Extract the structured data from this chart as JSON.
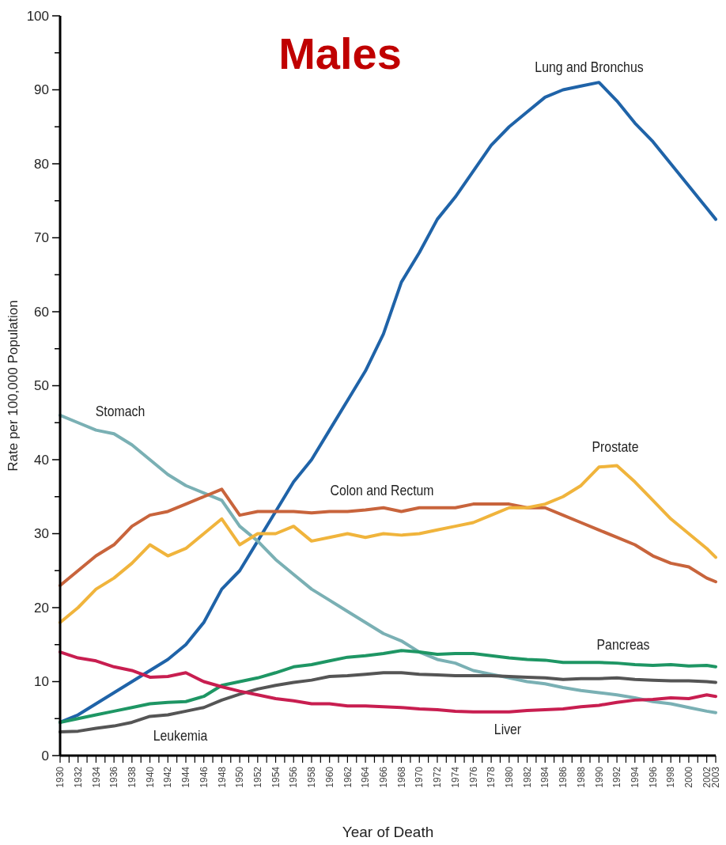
{
  "chart_data": {
    "type": "line",
    "title": "Males",
    "xlabel": "Year of Death",
    "ylabel": "Rate per 100,000 Population",
    "x": [
      1930,
      1932,
      1934,
      1936,
      1938,
      1940,
      1942,
      1944,
      1946,
      1948,
      1950,
      1952,
      1954,
      1956,
      1958,
      1960,
      1962,
      1964,
      1966,
      1968,
      1970,
      1972,
      1974,
      1976,
      1978,
      1980,
      1982,
      1984,
      1986,
      1988,
      1990,
      1992,
      1994,
      1996,
      1998,
      2000,
      2002,
      2003
    ],
    "xlim": [
      1930,
      2003
    ],
    "xticks": [
      1930,
      {
        "value": 1931,
        "label": null
      },
      1932,
      {
        "value": 1933,
        "label": null
      },
      1934,
      {
        "value": 1935,
        "label": null
      },
      1936,
      {
        "value": 1937,
        "label": null
      },
      1938,
      {
        "value": 1939,
        "label": null
      },
      1940,
      {
        "value": 1941,
        "label": null
      },
      1942,
      {
        "value": 1943,
        "label": null
      },
      1944,
      {
        "value": 1945,
        "label": null
      },
      1946,
      {
        "value": 1947,
        "label": null
      },
      1948,
      {
        "value": 1949,
        "label": null
      },
      1950,
      {
        "value": 1951,
        "label": null
      },
      1952,
      {
        "value": 1953,
        "label": null
      },
      1954,
      {
        "value": 1955,
        "label": null
      },
      1956,
      {
        "value": 1957,
        "label": null
      },
      1958,
      {
        "value": 1959,
        "label": null
      },
      1960,
      {
        "value": 1961,
        "label": null
      },
      1962,
      {
        "value": 1963,
        "label": null
      },
      1964,
      {
        "value": 1965,
        "label": null
      },
      1966,
      {
        "value": 1967,
        "label": null
      },
      1968,
      {
        "value": 1969,
        "label": null
      },
      1970,
      {
        "value": 1971,
        "label": null
      },
      1972,
      {
        "value": 1973,
        "label": null
      },
      1974,
      {
        "value": 1975,
        "label": null
      },
      1976,
      {
        "value": 1977,
        "label": null
      },
      1978,
      {
        "value": 1979,
        "label": null
      },
      1980,
      {
        "value": 1981,
        "label": null
      },
      1982,
      {
        "value": 1983,
        "label": null
      },
      1984,
      {
        "value": 1985,
        "label": null
      },
      1986,
      {
        "value": 1987,
        "label": null
      },
      1988,
      {
        "value": 1989,
        "label": null
      },
      1990,
      {
        "value": 1991,
        "label": null
      },
      1992,
      {
        "value": 1993,
        "label": null
      },
      1994,
      {
        "value": 1995,
        "label": null
      },
      1996,
      {
        "value": 1997,
        "label": null
      },
      1998,
      {
        "value": 1999,
        "label": null
      },
      2000,
      {
        "value": 2001,
        "label": null
      },
      2002,
      2003
    ],
    "ylim": [
      0,
      100
    ],
    "yticks": [
      0,
      {
        "value": 5,
        "label": null
      },
      10,
      {
        "value": 15,
        "label": null
      },
      20,
      {
        "value": 25,
        "label": null
      },
      30,
      {
        "value": 35,
        "label": null
      },
      40,
      {
        "value": 45,
        "label": null
      },
      50,
      {
        "value": 55,
        "label": null
      },
      60,
      {
        "value": 65,
        "label": null
      },
      70,
      {
        "value": 75,
        "label": null
      },
      80,
      {
        "value": 85,
        "label": null
      },
      90,
      {
        "value": 95,
        "label": null
      },
      100
    ],
    "series": [
      {
        "name": "Lung and Bronchus",
        "color": "#1f63a8",
        "values": [
          4.5,
          5.5,
          7,
          8.5,
          10,
          11.5,
          13,
          15,
          18,
          22.5,
          25,
          29,
          33,
          37,
          40,
          44,
          48,
          52,
          57,
          64,
          68,
          72.5,
          75.5,
          79,
          82.5,
          85,
          87,
          89,
          90,
          90.5,
          91,
          88.5,
          85.5,
          83,
          80,
          77,
          74,
          72.5
        ]
      },
      {
        "name": "Stomach",
        "color": "#7ab0b4",
        "values": [
          46,
          45,
          44,
          43.5,
          42,
          40,
          38,
          36.5,
          35.5,
          34.5,
          31,
          29,
          26.5,
          24.5,
          22.5,
          21,
          19.5,
          18,
          16.5,
          15.5,
          14,
          13,
          12.5,
          11.5,
          11,
          10.5,
          10,
          9.7,
          9.2,
          8.8,
          8.5,
          8.2,
          7.8,
          7.3,
          7,
          6.5,
          6,
          5.8
        ]
      },
      {
        "name": "Colon and Rectum",
        "color": "#c8643c",
        "values": [
          23,
          25,
          27,
          28.5,
          31,
          32.5,
          33,
          34,
          35,
          36,
          32.5,
          33,
          33,
          33,
          32.8,
          33,
          33,
          33.2,
          33.5,
          33,
          33.5,
          33.5,
          33.5,
          34,
          34,
          34,
          33.5,
          33.5,
          32.5,
          31.5,
          30.5,
          29.5,
          28.5,
          27,
          26,
          25.5,
          24,
          23.5
        ]
      },
      {
        "name": "Prostate",
        "color": "#f0b43c",
        "values": [
          18,
          20,
          22.5,
          24,
          26,
          28.5,
          27,
          28,
          30,
          32,
          28.5,
          30,
          30,
          31,
          29,
          29.5,
          30,
          29.5,
          30,
          29.8,
          30,
          30.5,
          31,
          31.5,
          32.5,
          33.5,
          33.5,
          34,
          35,
          36.5,
          39,
          39.2,
          37,
          34.5,
          32,
          30,
          28,
          26.8
        ]
      },
      {
        "name": "Pancreas",
        "color": "#1e9664",
        "values": [
          4.5,
          5,
          5.5,
          6,
          6.5,
          7,
          7.2,
          7.3,
          8,
          9.5,
          10,
          10.5,
          11.2,
          12,
          12.3,
          12.8,
          13.3,
          13.5,
          13.8,
          14.2,
          14,
          13.7,
          13.8,
          13.8,
          13.5,
          13.2,
          13,
          12.9,
          12.6,
          12.6,
          12.6,
          12.5,
          12.3,
          12.2,
          12.3,
          12.1,
          12.2,
          12
        ]
      },
      {
        "name": "Leukemia",
        "color": "#555555",
        "values": [
          3.2,
          3.3,
          3.7,
          4,
          4.5,
          5.3,
          5.5,
          6,
          6.5,
          7.5,
          8.3,
          9,
          9.5,
          9.9,
          10.2,
          10.7,
          10.8,
          11,
          11.2,
          11.2,
          11,
          10.9,
          10.8,
          10.8,
          10.8,
          10.7,
          10.6,
          10.5,
          10.3,
          10.4,
          10.4,
          10.5,
          10.3,
          10.2,
          10.1,
          10.1,
          10,
          9.9
        ]
      },
      {
        "name": "Liver",
        "color": "#c81e50",
        "values": [
          14,
          13.2,
          12.8,
          12,
          11.5,
          10.6,
          10.7,
          11.2,
          10,
          9.3,
          8.7,
          8.2,
          7.7,
          7.4,
          7,
          7,
          6.7,
          6.7,
          6.6,
          6.5,
          6.3,
          6.2,
          6,
          5.9,
          5.9,
          5.9,
          6.1,
          6.2,
          6.3,
          6.6,
          6.8,
          7.2,
          7.5,
          7.6,
          7.8,
          7.7,
          8.2,
          8
        ]
      }
    ]
  }
}
